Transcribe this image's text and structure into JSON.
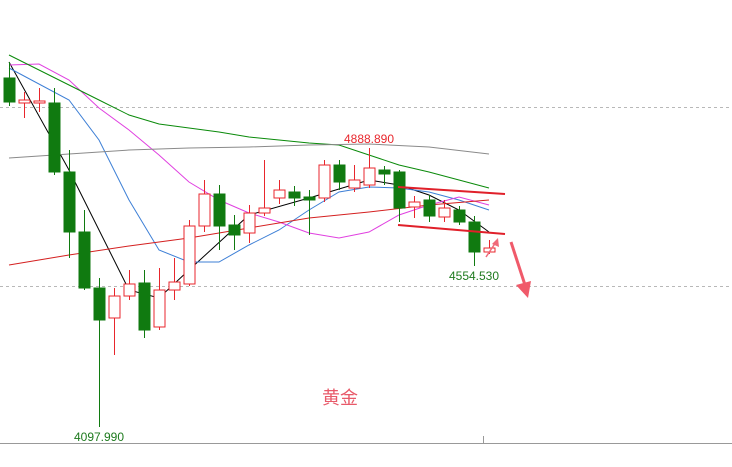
{
  "chart_data": {
    "type": "candlestick",
    "watermark": "黄金",
    "categories": [
      null,
      null,
      null,
      null,
      null,
      null,
      null,
      null,
      null,
      null,
      null,
      null,
      null,
      null,
      null,
      null,
      null,
      null,
      null,
      null,
      null,
      null,
      null,
      null,
      null,
      null,
      null,
      null,
      null,
      null,
      null,
      null,
      null
    ],
    "open": [
      5087.4,
      5016.5,
      5016.5,
      5016.5,
      4820.9,
      4650.8,
      4492.0,
      4407.0,
      4469.3,
      4506.2,
      4381.5,
      4486.3,
      4503.4,
      4667.8,
      4758.5,
      4670.6,
      4647.9,
      4704.6,
      4747.2,
      4764.2,
      4750.0,
      4747.2,
      4840.7,
      4775.5,
      4784.0,
      4826.5,
      4820.9,
      4721.7,
      4741.5,
      4693.3,
      4713.1,
      4679.1,
      4594.1
    ],
    "high": [
      5132.7,
      5047.7,
      5059.0,
      5059.0,
      4883.2,
      4713.1,
      4520.4,
      4492.0,
      4543.0,
      4543.0,
      4548.7,
      4577.1,
      4684.8,
      4798.2,
      4784.0,
      4699.0,
      4727.3,
      4854.9,
      4798.2,
      4781.2,
      4769.8,
      4854.9,
      4854.9,
      4840.7,
      4888.89,
      4837.9,
      4826.5,
      4752.8,
      4755.7,
      4741.5,
      4724.5,
      4696.1,
      4628.1
    ],
    "low": [
      5008.0,
      4974.0,
      4991.0,
      4812.4,
      4577.1,
      4486.3,
      4097.99,
      4302.1,
      4458.0,
      4350.3,
      4372.9,
      4458.0,
      4497.7,
      4650.8,
      4599.7,
      4599.7,
      4619.6,
      4696.1,
      4730.2,
      4724.5,
      4642.3,
      4735.8,
      4769.8,
      4764.2,
      4775.5,
      4784.0,
      4679.1,
      4690.5,
      4679.1,
      4679.1,
      4670.6,
      4554.53,
      4588.4
    ],
    "close": [
      5019.3,
      5025.0,
      5022.2,
      4820.9,
      4650.8,
      4492.0,
      4401.3,
      4469.3,
      4503.4,
      4372.9,
      4486.3,
      4509.0,
      4667.8,
      4758.5,
      4667.8,
      4642.3,
      4704.6,
      4718.8,
      4769.8,
      4747.2,
      4741.5,
      4840.7,
      4792.5,
      4798.2,
      4832.2,
      4815.2,
      4718.8,
      4735.8,
      4696.1,
      4718.8,
      4679.1,
      4594.1,
      4605.4
    ],
    "up_color": "#e8262c",
    "down_color": "#107a10",
    "ylim": [
      4052.6,
      5308.5
    ],
    "series": [
      {
        "color": "#000000",
        "x": [
          0,
          4,
          8,
          10,
          12,
          16,
          20,
          24,
          26,
          28,
          30,
          32
        ],
        "values": [
          5132.7,
          4826.5,
          4486.3,
          4463.7,
          4543.0,
          4699.0,
          4747.2,
          4798.2,
          4784.0,
          4755.7,
          4713.1,
          4650.8
        ]
      },
      {
        "color": "#3d7fd6",
        "x": [
          0,
          4,
          6,
          8,
          10,
          12,
          14,
          16,
          18,
          20,
          22,
          24,
          26,
          28,
          30,
          32
        ],
        "values": [
          5115.7,
          5025.0,
          4911.6,
          4741.5,
          4599.7,
          4565.7,
          4565.7,
          4613.9,
          4656.4,
          4713.1,
          4764.2,
          4778.4,
          4775.5,
          4764.2,
          4741.5,
          4713.1
        ]
      },
      {
        "color": "#e040e0",
        "x": [
          0,
          2,
          4,
          6,
          8,
          10,
          12,
          14,
          16,
          18,
          20,
          22,
          24,
          26,
          28,
          30,
          32
        ],
        "values": [
          5124.2,
          5127.1,
          5081.7,
          5002.3,
          4939.9,
          4869.1,
          4792.5,
          4741.5,
          4704.6,
          4679.1,
          4647.9,
          4633.8,
          4650.8,
          4699.0,
          4727.3,
          4750.0,
          4727.3
        ]
      },
      {
        "color": "#0a8a0a",
        "x": [
          0,
          2,
          4,
          6,
          8,
          10,
          12,
          14,
          16,
          18,
          20,
          22,
          24,
          26,
          28,
          30,
          32
        ],
        "values": [
          5152.6,
          5110.0,
          5067.5,
          5025.0,
          4982.5,
          4957.0,
          4945.6,
          4934.3,
          4920.1,
          4911.6,
          4903.1,
          4897.4,
          4869.1,
          4840.7,
          4820.9,
          4798.2,
          4775.5
        ]
      },
      {
        "color": "#8a8a8a",
        "x": [
          0,
          4,
          8,
          12,
          16,
          20,
          24,
          28,
          32
        ],
        "values": [
          4860.6,
          4871.9,
          4883.2,
          4888.9,
          4891.8,
          4897.4,
          4900.3,
          4891.8,
          4871.9
        ]
      },
      {
        "color": "#d42020",
        "x": [
          0,
          4,
          8,
          12,
          16,
          20,
          24,
          28,
          32
        ],
        "values": [
          4557.2,
          4585.6,
          4611.1,
          4633.8,
          4662.1,
          4690.5,
          4707.5,
          4727.3,
          4741.5
        ]
      }
    ],
    "labels": [
      {
        "x": 24,
        "value": 4888.89,
        "label": "4888.890",
        "color": "#e8262c"
      },
      {
        "x": 6,
        "value": 4097.99,
        "label": "4097.990",
        "color": "#1d7a1d"
      },
      {
        "x": 31,
        "value": 4554.53,
        "label": "4554.530",
        "color": "#1d7a1d"
      }
    ]
  }
}
